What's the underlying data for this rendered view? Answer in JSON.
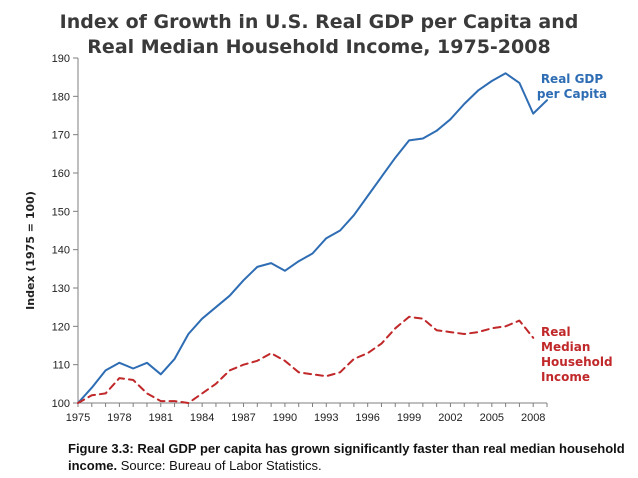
{
  "title_line1": "Index of Growth in U.S. Real GDP per Capita and",
  "title_line2": "Real Median Household Income, 1975-2008",
  "caption": {
    "bold": "Figure 3.3: Real GDP per capita has grown significantly faster than real median household income.",
    "normal": " Source: Bureau of Labor Statistics."
  },
  "chart_data": {
    "type": "line",
    "title": "Index of Growth in U.S. Real GDP per Capita and Real Median Household Income, 1975-2008",
    "xlabel": "",
    "ylabel": "Index (1975 = 100)",
    "xlim": [
      1975,
      2009
    ],
    "ylim": [
      100,
      190
    ],
    "x_ticks": [
      1975,
      1978,
      1981,
      1984,
      1987,
      1990,
      1993,
      1996,
      1999,
      2002,
      2005,
      2008
    ],
    "y_ticks": [
      100,
      110,
      120,
      130,
      140,
      150,
      160,
      170,
      180,
      190
    ],
    "grid": false,
    "series": [
      {
        "name": "Real GDP per Capita",
        "color": "#2e6db4",
        "style": "solid",
        "x": [
          1975,
          1976,
          1977,
          1978,
          1979,
          1980,
          1981,
          1982,
          1983,
          1984,
          1985,
          1986,
          1987,
          1988,
          1989,
          1990,
          1991,
          1992,
          1993,
          1994,
          1995,
          1996,
          1997,
          1998,
          1999,
          2000,
          2001,
          2002,
          2003,
          2004,
          2005,
          2006,
          2007,
          2008,
          2009
        ],
        "y": [
          100,
          104,
          108.5,
          110.5,
          109,
          110.5,
          107.5,
          111.5,
          118,
          122,
          125,
          128,
          132,
          135.5,
          136.5,
          134.5,
          137,
          139,
          143,
          145,
          149,
          154,
          159,
          164,
          168.5,
          169,
          171,
          174,
          178,
          181.5,
          184,
          186,
          183.5,
          175.5,
          179
        ]
      },
      {
        "name": "Real Median Household Income",
        "color": "#c0282a",
        "style": "dashed",
        "x": [
          1975,
          1976,
          1977,
          1978,
          1979,
          1980,
          1981,
          1982,
          1983,
          1984,
          1985,
          1986,
          1987,
          1988,
          1989,
          1990,
          1991,
          1992,
          1993,
          1994,
          1995,
          1996,
          1997,
          1998,
          1999,
          2000,
          2001,
          2002,
          2003,
          2004,
          2005,
          2006,
          2007,
          2008
        ],
        "y": [
          100,
          102,
          102.5,
          106.5,
          106,
          102.5,
          100.5,
          100.5,
          100,
          102.5,
          105,
          108.5,
          110,
          111,
          113,
          111,
          108,
          107.5,
          107,
          108,
          111.5,
          113,
          115.5,
          119.5,
          122.5,
          122,
          119,
          118.5,
          118,
          118.5,
          119.5,
          120,
          121.5,
          117
        ]
      }
    ],
    "annotations": [
      {
        "lines": [
          "Real GDP",
          "per Capita"
        ],
        "color": "#2e6db4"
      },
      {
        "lines": [
          "Real",
          "Median",
          "Household",
          "Income"
        ],
        "color": "#c0282a"
      }
    ]
  }
}
